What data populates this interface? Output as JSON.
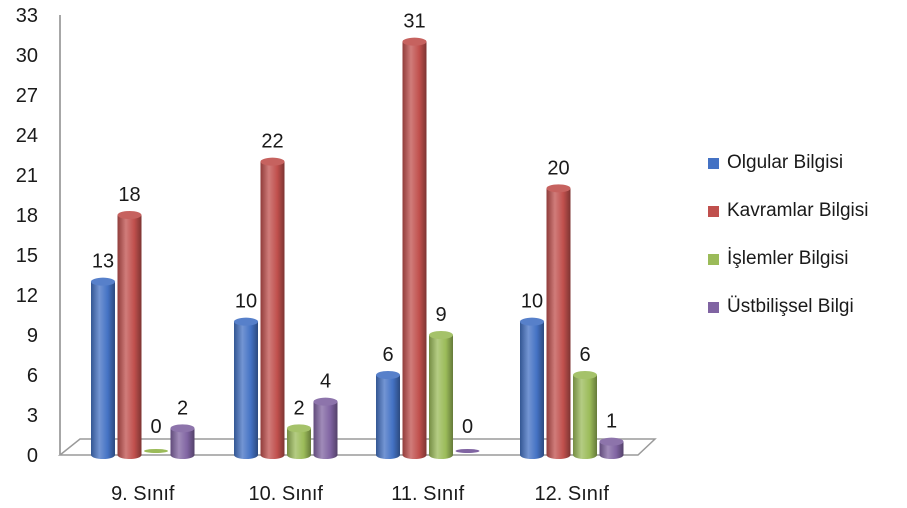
{
  "chart_data": {
    "type": "bar",
    "categories": [
      "9. Sınıf",
      "10. Sınıf",
      "11. Sınıf",
      "12. Sınıf"
    ],
    "series": [
      {
        "name": "Olgular Bilgisi",
        "values": [
          13,
          10,
          6,
          10
        ],
        "color": "#4472C4"
      },
      {
        "name": "Kavramlar Bilgisi",
        "values": [
          18,
          22,
          31,
          20
        ],
        "color": "#C0504D"
      },
      {
        "name": "İşlemler Bilgisi",
        "values": [
          0,
          2,
          9,
          6
        ],
        "color": "#9BBB59"
      },
      {
        "name": "Üstbilişsel Bilgi",
        "values": [
          2,
          4,
          0,
          1
        ],
        "color": "#8064A2"
      }
    ],
    "y_ticks": [
      0,
      3,
      6,
      9,
      12,
      15,
      18,
      21,
      24,
      27,
      30,
      33
    ],
    "ylim": [
      0,
      33
    ],
    "legend_position": "right",
    "grid": false,
    "style": "3d-cylinder"
  }
}
